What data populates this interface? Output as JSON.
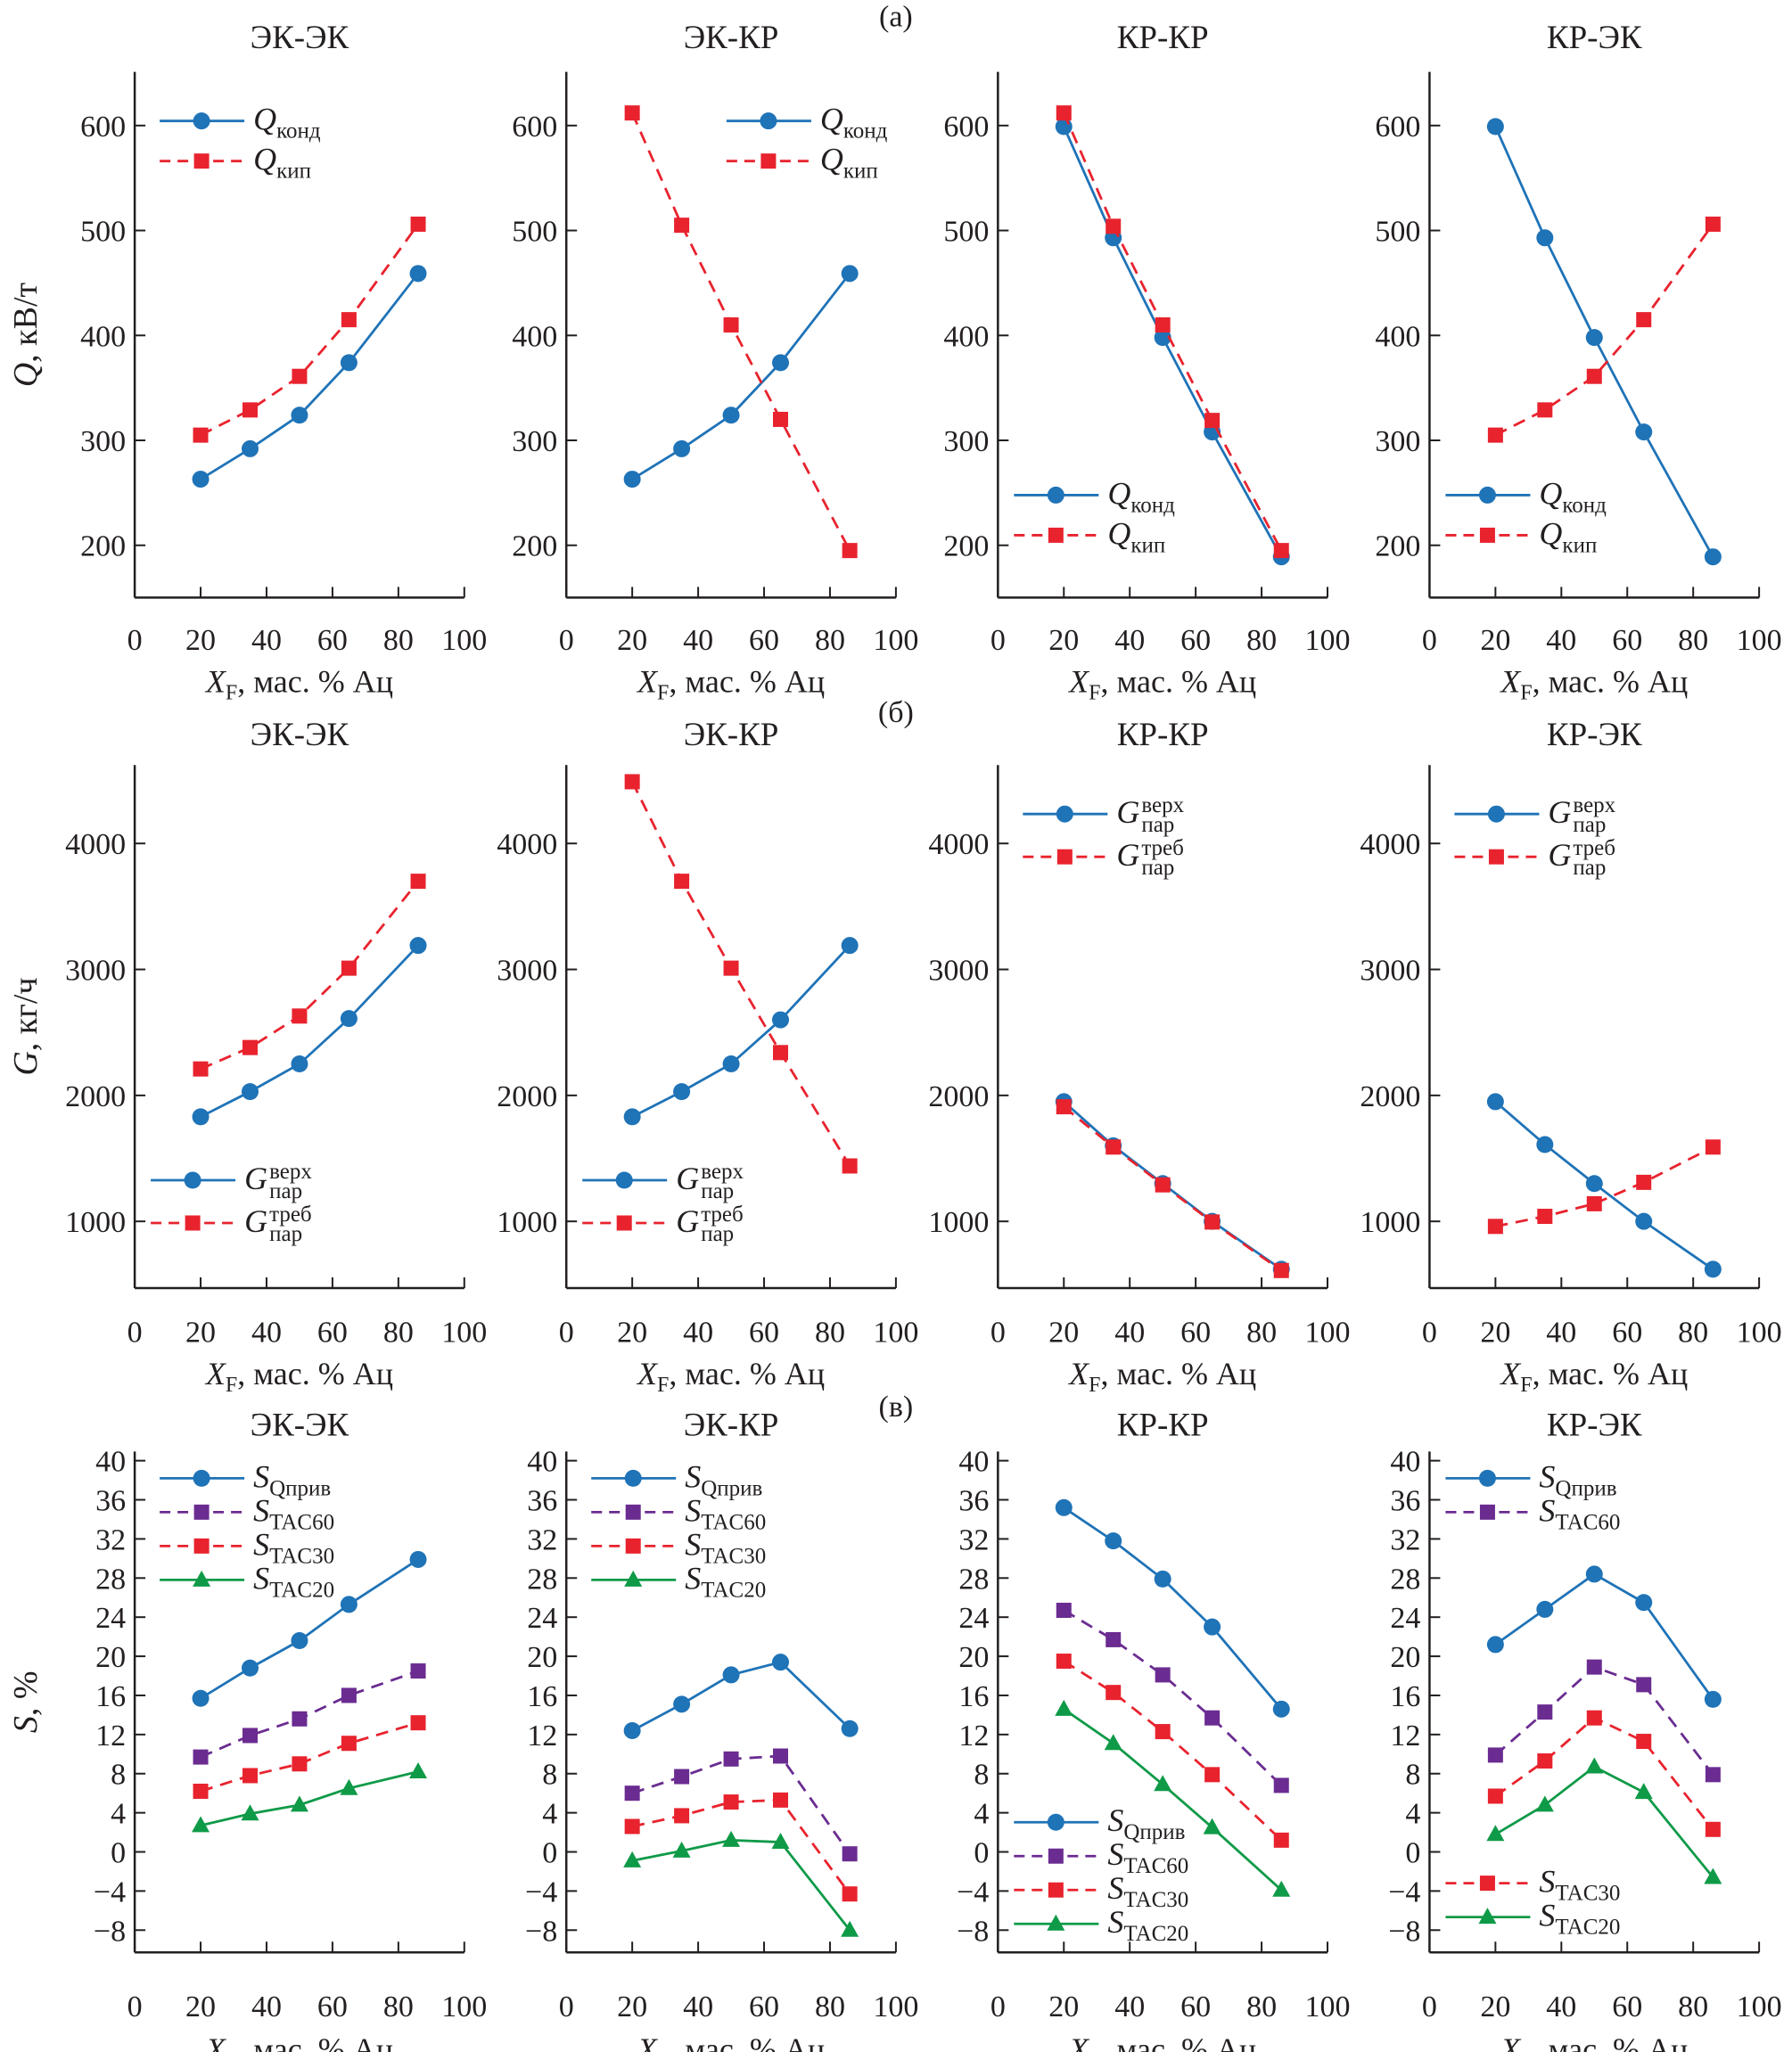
{
  "figure": {
    "row_labels": [
      "(а)",
      "(б)",
      "(в)"
    ],
    "xlabel_main": "X",
    "xlabel_sub": "F",
    "xlabel_rest": ", мас. % Ац"
  },
  "chart_data": [
    {
      "type": "line",
      "row": 0,
      "col": 0,
      "title": "ЭК-ЭК",
      "ylabel": "Q, кВ/т",
      "ylim": [
        150,
        650
      ],
      "yticks": [
        200,
        300,
        400,
        500,
        600
      ],
      "xlim": [
        0,
        100
      ],
      "xticks": [
        0,
        20,
        40,
        60,
        80,
        100
      ],
      "legend": "top-left",
      "x": [
        20,
        35,
        50,
        65,
        86
      ],
      "series": [
        {
          "name": "Q_конд",
          "main": "Q",
          "sub": "конд",
          "sup": "",
          "marker": "circle",
          "dash": false,
          "color": "#1f73b7",
          "values": [
            263,
            292,
            324,
            374,
            459
          ]
        },
        {
          "name": "Q_кип",
          "main": "Q",
          "sub": "кип",
          "sup": "",
          "marker": "square",
          "dash": true,
          "color": "#e8232e",
          "values": [
            305,
            329,
            361,
            415,
            506
          ]
        }
      ]
    },
    {
      "type": "line",
      "row": 0,
      "col": 1,
      "title": "ЭК-КР",
      "ylabel": "",
      "ylim": [
        150,
        650
      ],
      "yticks": [
        200,
        300,
        400,
        500,
        600
      ],
      "xlim": [
        0,
        100
      ],
      "xticks": [
        0,
        20,
        40,
        60,
        80,
        100
      ],
      "legend": "top-right",
      "x": [
        20,
        35,
        50,
        65,
        86
      ],
      "series": [
        {
          "name": "Q_конд",
          "main": "Q",
          "sub": "конд",
          "sup": "",
          "marker": "circle",
          "dash": false,
          "color": "#1f73b7",
          "values": [
            263,
            292,
            324,
            374,
            459
          ]
        },
        {
          "name": "Q_кип",
          "main": "Q",
          "sub": "кип",
          "sup": "",
          "marker": "square",
          "dash": true,
          "color": "#e8232e",
          "values": [
            612,
            505,
            410,
            320,
            195
          ]
        }
      ]
    },
    {
      "type": "line",
      "row": 0,
      "col": 2,
      "title": "КР-КР",
      "ylabel": "",
      "ylim": [
        150,
        650
      ],
      "yticks": [
        200,
        300,
        400,
        500,
        600
      ],
      "xlim": [
        0,
        100
      ],
      "xticks": [
        0,
        20,
        40,
        60,
        80,
        100
      ],
      "legend": "bottom-left",
      "x": [
        20,
        35,
        50,
        65,
        86
      ],
      "series": [
        {
          "name": "Q_конд",
          "main": "Q",
          "sub": "конд",
          "sup": "",
          "marker": "circle",
          "dash": false,
          "color": "#1f73b7",
          "values": [
            599,
            493,
            398,
            308,
            189
          ]
        },
        {
          "name": "Q_кип",
          "main": "Q",
          "sub": "кип",
          "sup": "",
          "marker": "square",
          "dash": true,
          "color": "#e8232e",
          "values": [
            612,
            504,
            410,
            319,
            195
          ]
        }
      ]
    },
    {
      "type": "line",
      "row": 0,
      "col": 3,
      "title": "КР-ЭК",
      "ylabel": "",
      "ylim": [
        150,
        650
      ],
      "yticks": [
        200,
        300,
        400,
        500,
        600
      ],
      "xlim": [
        0,
        100
      ],
      "xticks": [
        0,
        20,
        40,
        60,
        80,
        100
      ],
      "legend": "bottom-left",
      "x": [
        20,
        35,
        50,
        65,
        86
      ],
      "series": [
        {
          "name": "Q_конд",
          "main": "Q",
          "sub": "конд",
          "sup": "",
          "marker": "circle",
          "dash": false,
          "color": "#1f73b7",
          "values": [
            599,
            493,
            398,
            308,
            189
          ]
        },
        {
          "name": "Q_кип",
          "main": "Q",
          "sub": "кип",
          "sup": "",
          "marker": "square",
          "dash": true,
          "color": "#e8232e",
          "values": [
            305,
            329,
            361,
            415,
            506
          ]
        }
      ]
    },
    {
      "type": "line",
      "row": 1,
      "col": 0,
      "title": "ЭК-ЭК",
      "ylabel": "G, кг/ч",
      "ylim": [
        450,
        4600
      ],
      "yticks": [
        1000,
        2000,
        3000,
        4000
      ],
      "xlim": [
        0,
        100
      ],
      "xticks": [
        0,
        20,
        40,
        60,
        80,
        100
      ],
      "legend": "bottom-left",
      "x": [
        20,
        35,
        50,
        65,
        86
      ],
      "series": [
        {
          "name": "G_пар^верх",
          "main": "G",
          "sub": "пар",
          "sup": "верх",
          "marker": "circle",
          "dash": false,
          "color": "#1f73b7",
          "values": [
            1830,
            2030,
            2250,
            2610,
            3190
          ]
        },
        {
          "name": "G_пар^треб",
          "main": "G",
          "sub": "пар",
          "sup": "треб",
          "marker": "square",
          "dash": true,
          "color": "#e8232e",
          "values": [
            2210,
            2380,
            2630,
            3010,
            3700
          ]
        }
      ]
    },
    {
      "type": "line",
      "row": 1,
      "col": 1,
      "title": "ЭК-КР",
      "ylabel": "",
      "ylim": [
        450,
        4600
      ],
      "yticks": [
        1000,
        2000,
        3000,
        4000
      ],
      "xlim": [
        0,
        100
      ],
      "xticks": [
        0,
        20,
        40,
        60,
        80,
        100
      ],
      "legend": "bottom-left",
      "x": [
        20,
        35,
        50,
        65,
        86
      ],
      "series": [
        {
          "name": "G_пар^верх",
          "main": "G",
          "sub": "пар",
          "sup": "верх",
          "marker": "circle",
          "dash": false,
          "color": "#1f73b7",
          "values": [
            1830,
            2030,
            2250,
            2600,
            3190
          ]
        },
        {
          "name": "G_пар^треб",
          "main": "G",
          "sub": "пар",
          "sup": "треб",
          "marker": "square",
          "dash": true,
          "color": "#e8232e",
          "values": [
            4490,
            3700,
            3010,
            2340,
            1440
          ]
        }
      ]
    },
    {
      "type": "line",
      "row": 1,
      "col": 2,
      "title": "КР-КР",
      "ylabel": "",
      "ylim": [
        450,
        4600
      ],
      "yticks": [
        1000,
        2000,
        3000,
        4000
      ],
      "xlim": [
        0,
        100
      ],
      "xticks": [
        0,
        20,
        40,
        60,
        80,
        100
      ],
      "legend": "top-left",
      "x": [
        20,
        35,
        50,
        65,
        86
      ],
      "series": [
        {
          "name": "G_пар^верх",
          "main": "G",
          "sub": "пар",
          "sup": "верх",
          "marker": "circle",
          "dash": false,
          "color": "#1f73b7",
          "values": [
            1950,
            1600,
            1300,
            1000,
            620
          ]
        },
        {
          "name": "G_пар^треб",
          "main": "G",
          "sub": "пар",
          "sup": "треб",
          "marker": "square",
          "dash": true,
          "color": "#e8232e",
          "values": [
            1910,
            1590,
            1290,
            995,
            610
          ]
        }
      ]
    },
    {
      "type": "line",
      "row": 1,
      "col": 3,
      "title": "КР-ЭК",
      "ylabel": "",
      "ylim": [
        450,
        4600
      ],
      "yticks": [
        1000,
        2000,
        3000,
        4000
      ],
      "xlim": [
        0,
        100
      ],
      "xticks": [
        0,
        20,
        40,
        60,
        80,
        100
      ],
      "legend": "top-left",
      "x": [
        20,
        35,
        50,
        65,
        86
      ],
      "series": [
        {
          "name": "G_пар^верх",
          "main": "G",
          "sub": "пар",
          "sup": "верх",
          "marker": "circle",
          "dash": false,
          "color": "#1f73b7",
          "values": [
            1950,
            1610,
            1300,
            1000,
            620
          ]
        },
        {
          "name": "G_пар^треб",
          "main": "G",
          "sub": "пар",
          "sup": "треб",
          "marker": "square",
          "dash": true,
          "color": "#e8232e",
          "values": [
            960,
            1040,
            1140,
            1310,
            1590
          ]
        }
      ]
    },
    {
      "type": "line",
      "row": 2,
      "col": 0,
      "title": "ЭК-ЭК",
      "ylabel": "S, %",
      "ylim": [
        -10,
        40
      ],
      "yticks": [
        -8,
        -4,
        0,
        4,
        8,
        12,
        16,
        20,
        24,
        28,
        32,
        36,
        40
      ],
      "xlim": [
        0,
        100
      ],
      "xticks": [
        0,
        20,
        40,
        60,
        80,
        100
      ],
      "legend": "top-left",
      "x": [
        20,
        35,
        50,
        65,
        86
      ],
      "series": [
        {
          "name": "S_Qприв",
          "main": "S",
          "sub": "Qприв",
          "sup": "",
          "marker": "circle",
          "dash": false,
          "color": "#1f73b7",
          "values": [
            15.7,
            18.8,
            21.6,
            25.3,
            29.9
          ]
        },
        {
          "name": "S_TAC60",
          "main": "S",
          "sub": "TAC60",
          "sup": "",
          "marker": "square",
          "dash": true,
          "color": "#6a2c91",
          "values": [
            9.7,
            11.9,
            13.6,
            16.0,
            18.5
          ]
        },
        {
          "name": "S_TAC30",
          "main": "S",
          "sub": "TAC30",
          "sup": "",
          "marker": "square",
          "dash": true,
          "color": "#e8232e",
          "values": [
            6.2,
            7.8,
            9.0,
            11.1,
            13.2
          ]
        },
        {
          "name": "S_TAC20",
          "main": "S",
          "sub": "TAC20",
          "sup": "",
          "marker": "triangle",
          "dash": false,
          "color": "#0f9a48",
          "values": [
            2.7,
            3.9,
            4.8,
            6.5,
            8.2
          ]
        }
      ]
    },
    {
      "type": "line",
      "row": 2,
      "col": 1,
      "title": "ЭК-КР",
      "ylabel": "",
      "ylim": [
        -10,
        40
      ],
      "yticks": [
        -8,
        -4,
        0,
        4,
        8,
        12,
        16,
        20,
        24,
        28,
        32,
        36,
        40
      ],
      "xlim": [
        0,
        100
      ],
      "xticks": [
        0,
        20,
        40,
        60,
        80,
        100
      ],
      "legend": "top-left",
      "x": [
        20,
        35,
        50,
        65,
        86
      ],
      "series": [
        {
          "name": "S_Qприв",
          "main": "S",
          "sub": "Qприв",
          "sup": "",
          "marker": "circle",
          "dash": false,
          "color": "#1f73b7",
          "values": [
            12.4,
            15.1,
            18.1,
            19.4,
            12.6
          ]
        },
        {
          "name": "S_TAC60",
          "main": "S",
          "sub": "TAC60",
          "sup": "",
          "marker": "square",
          "dash": true,
          "color": "#6a2c91",
          "values": [
            6.0,
            7.7,
            9.5,
            9.8,
            -0.2
          ]
        },
        {
          "name": "S_TAC30",
          "main": "S",
          "sub": "TAC30",
          "sup": "",
          "marker": "square",
          "dash": true,
          "color": "#e8232e",
          "values": [
            2.6,
            3.7,
            5.1,
            5.3,
            -4.3
          ]
        },
        {
          "name": "S_TAC20",
          "main": "S",
          "sub": "TAC20",
          "sup": "",
          "marker": "triangle",
          "dash": false,
          "color": "#0f9a48",
          "values": [
            -0.9,
            0.1,
            1.2,
            1.0,
            -8.0
          ]
        }
      ]
    },
    {
      "type": "line",
      "row": 2,
      "col": 2,
      "title": "КР-КР",
      "ylabel": "",
      "ylim": [
        -10,
        40
      ],
      "yticks": [
        -8,
        -4,
        0,
        4,
        8,
        12,
        16,
        20,
        24,
        28,
        32,
        36,
        40
      ],
      "xlim": [
        0,
        100
      ],
      "xticks": [
        0,
        20,
        40,
        60,
        80,
        100
      ],
      "legend": "bottom-left",
      "x": [
        20,
        35,
        50,
        65,
        86
      ],
      "series": [
        {
          "name": "S_Qприв",
          "main": "S",
          "sub": "Qприв",
          "sup": "",
          "marker": "circle",
          "dash": false,
          "color": "#1f73b7",
          "values": [
            35.2,
            31.8,
            27.9,
            23.0,
            14.6
          ]
        },
        {
          "name": "S_TAC60",
          "main": "S",
          "sub": "TAC60",
          "sup": "",
          "marker": "square",
          "dash": true,
          "color": "#6a2c91",
          "values": [
            24.7,
            21.7,
            18.1,
            13.7,
            6.8
          ]
        },
        {
          "name": "S_TAC30",
          "main": "S",
          "sub": "TAC30",
          "sup": "",
          "marker": "square",
          "dash": true,
          "color": "#e8232e",
          "values": [
            19.5,
            16.3,
            12.3,
            7.9,
            1.2
          ]
        },
        {
          "name": "S_TAC20",
          "main": "S",
          "sub": "TAC20",
          "sup": "",
          "marker": "triangle",
          "dash": false,
          "color": "#0f9a48",
          "values": [
            14.6,
            11.1,
            6.9,
            2.5,
            -3.9
          ]
        }
      ]
    },
    {
      "type": "line",
      "row": 2,
      "col": 3,
      "title": "КР-ЭК",
      "ylabel": "",
      "ylim": [
        -10,
        40
      ],
      "yticks": [
        -8,
        -4,
        0,
        4,
        8,
        12,
        16,
        20,
        24,
        28,
        32,
        36,
        40
      ],
      "xlim": [
        0,
        100
      ],
      "xticks": [
        0,
        20,
        40,
        60,
        80,
        100
      ],
      "legend": "split",
      "x": [
        20,
        35,
        50,
        65,
        86
      ],
      "series": [
        {
          "name": "S_Qприв",
          "main": "S",
          "sub": "Qприв",
          "sup": "",
          "marker": "circle",
          "dash": false,
          "color": "#1f73b7",
          "values": [
            21.2,
            24.8,
            28.4,
            25.5,
            15.6
          ]
        },
        {
          "name": "S_TAC60",
          "main": "S",
          "sub": "TAC60",
          "sup": "",
          "marker": "square",
          "dash": true,
          "color": "#6a2c91",
          "values": [
            9.9,
            14.3,
            18.9,
            17.1,
            7.9
          ]
        },
        {
          "name": "S_TAC30",
          "main": "S",
          "sub": "TAC30",
          "sup": "",
          "marker": "square",
          "dash": true,
          "color": "#e8232e",
          "values": [
            5.7,
            9.3,
            13.7,
            11.3,
            2.3
          ]
        },
        {
          "name": "S_TAC20",
          "main": "S",
          "sub": "TAC20",
          "sup": "",
          "marker": "triangle",
          "dash": false,
          "color": "#0f9a48",
          "values": [
            1.8,
            4.8,
            8.7,
            6.1,
            -2.6
          ]
        }
      ]
    }
  ]
}
